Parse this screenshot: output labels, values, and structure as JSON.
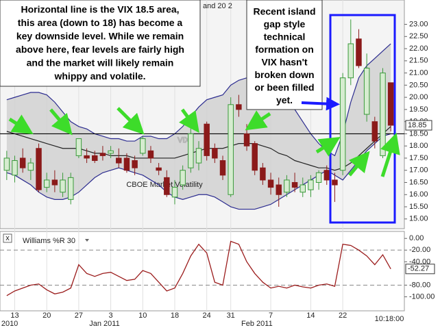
{
  "chart_data": {
    "type": "candlestick",
    "legend_fragment": "and 20 2",
    "watermark": "VIX",
    "watermark_name": "CBOE Market Volatility",
    "up_color": "#3a9a3a",
    "up_fill": "#d6ecd0",
    "down_color": "#8b1a1a",
    "band_color": "#2b2b8f",
    "middle_color": "#222222",
    "band_fill": "#cfcfcf",
    "level": 18.5,
    "last_value": 18.85,
    "categories": [
      null,
      "13",
      null,
      null,
      null,
      "20",
      null,
      null,
      null,
      "27",
      null,
      null,
      null,
      "3",
      null,
      null,
      null,
      "10",
      null,
      null,
      null,
      "18",
      null,
      null,
      null,
      "24",
      null,
      null,
      "31",
      null,
      null,
      null,
      null,
      "7",
      null,
      null,
      null,
      null,
      "14",
      null,
      null,
      null,
      "22",
      null,
      null,
      null,
      null,
      null,
      null
    ],
    "period_labels": [
      {
        "index": 0,
        "label": "2010"
      },
      {
        "index": 11,
        "label": "Jan 2011"
      },
      {
        "index": 30,
        "label": "Feb 2011"
      }
    ],
    "time_label": "10:18:00",
    "open": [
      17.0,
      16.8,
      17.5,
      17.0,
      17.9,
      16.3,
      16.6,
      16.1,
      15.8,
      17.6,
      17.6,
      17.6,
      17.7,
      17.7,
      17.5,
      17.5,
      17.4,
      17.7,
      17.8,
      17.1,
      16.7,
      15.9,
      16.4,
      17.1,
      17.3,
      18.9,
      17.9,
      17.4,
      16.0,
      19.7,
      18.5,
      18.1,
      17.1,
      16.6,
      16.4,
      16.1,
      16.5,
      16.1,
      16.2,
      16.5,
      17.0,
      16.6,
      17.0,
      20.8,
      22.4,
      19.3,
      19.0,
      17.6,
      20.6
    ],
    "high": [
      17.8,
      17.6,
      17.9,
      17.5,
      18.1,
      16.9,
      17.0,
      16.9,
      16.9,
      18.3,
      17.9,
      17.8,
      18.0,
      18.0,
      17.9,
      17.7,
      17.6,
      18.4,
      18.0,
      17.3,
      17.0,
      16.6,
      17.2,
      18.8,
      18.2,
      19.0,
      18.1,
      17.6,
      20.0,
      20.1,
      18.9,
      18.2,
      17.3,
      16.9,
      16.7,
      16.8,
      16.9,
      16.7,
      16.8,
      17.0,
      17.2,
      16.9,
      21.0,
      23.2,
      22.8,
      21.8,
      19.2,
      21.2,
      20.6
    ],
    "low": [
      16.6,
      16.5,
      16.9,
      16.6,
      16.1,
      16.1,
      16.1,
      15.9,
      15.6,
      17.5,
      17.3,
      17.3,
      17.4,
      17.5,
      17.1,
      16.9,
      16.8,
      17.6,
      17.3,
      16.8,
      15.9,
      15.6,
      16.2,
      16.9,
      17.0,
      17.4,
      17.3,
      16.6,
      15.9,
      19.2,
      17.8,
      16.8,
      16.4,
      16.0,
      15.5,
      15.9,
      16.1,
      15.9,
      15.9,
      16.2,
      16.4,
      15.7,
      16.8,
      20.5,
      21.2,
      19.0,
      17.9,
      17.5,
      18.6
    ],
    "close": [
      17.5,
      17.4,
      17.1,
      17.3,
      16.2,
      16.6,
      16.4,
      16.6,
      16.7,
      18.3,
      17.5,
      17.4,
      17.6,
      17.8,
      17.3,
      17.0,
      17.1,
      18.3,
      17.5,
      17.0,
      16.0,
      16.3,
      17.0,
      18.5,
      17.9,
      17.6,
      17.5,
      16.8,
      19.7,
      19.5,
      18.0,
      17.0,
      16.6,
      16.3,
      16.0,
      16.6,
      16.3,
      16.4,
      16.6,
      16.9,
      16.6,
      16.4,
      20.8,
      22.2,
      21.3,
      21.2,
      18.2,
      21.0,
      18.85
    ],
    "upper": [
      19.9,
      20.0,
      20.1,
      20.2,
      20.2,
      20.1,
      19.8,
      19.4,
      19.0,
      18.8,
      18.7,
      18.5,
      18.4,
      18.3,
      18.3,
      18.2,
      18.2,
      18.4,
      18.4,
      18.3,
      18.3,
      18.5,
      18.8,
      19.2,
      19.6,
      19.9,
      20.0,
      20.1,
      20.5,
      20.7,
      20.8,
      20.8,
      20.7,
      20.5,
      20.2,
      19.9,
      19.5,
      19.0,
      18.5,
      18.1,
      17.8,
      17.6,
      18.5,
      19.8,
      20.8,
      21.3,
      21.6,
      21.9,
      22.2
    ],
    "middle": [
      18.6,
      18.5,
      18.4,
      18.3,
      18.2,
      18.1,
      18.0,
      17.9,
      17.9,
      17.9,
      17.8,
      17.7,
      17.7,
      17.6,
      17.6,
      17.6,
      17.5,
      17.5,
      17.5,
      17.5,
      17.5,
      17.5,
      17.6,
      17.7,
      17.8,
      17.9,
      17.9,
      17.9,
      18.0,
      18.1,
      18.1,
      18.1,
      18.0,
      17.9,
      17.7,
      17.6,
      17.4,
      17.3,
      17.2,
      17.1,
      17.1,
      17.0,
      17.1,
      17.3,
      17.6,
      17.9,
      18.2,
      18.5,
      18.8
    ],
    "lower": [
      16.9,
      16.8,
      16.6,
      16.4,
      16.1,
      15.9,
      15.8,
      15.8,
      15.9,
      16.1,
      16.4,
      16.7,
      16.9,
      17.0,
      17.1,
      17.0,
      16.9,
      16.8,
      16.6,
      16.4,
      16.1,
      15.9,
      15.8,
      15.9,
      16.0,
      16.0,
      15.9,
      15.7,
      15.5,
      15.4,
      15.4,
      15.4,
      15.5,
      15.6,
      15.8,
      16.0,
      16.2,
      16.4,
      16.6,
      16.8,
      17.0,
      16.8,
      16.6,
      17.0,
      17.4,
      17.8,
      18.1,
      18.4,
      18.5
    ],
    "ylim": [
      14.6,
      24.0
    ],
    "yticks": [
      {
        "value": 15,
        "label": "15.00"
      },
      {
        "value": 15.5,
        "label": "15.50"
      },
      {
        "value": 16,
        "label": "16.00"
      },
      {
        "value": 16.5,
        "label": "16.50"
      },
      {
        "value": 17,
        "label": "17.00"
      },
      {
        "value": 17.5,
        "label": "17.50"
      },
      {
        "value": 18,
        "label": "18.00"
      },
      {
        "value": 18.5,
        "label": "18.50"
      },
      {
        "value": 19,
        "label": "19.00"
      },
      {
        "value": 19.5,
        "label": "19.50"
      },
      {
        "value": 20,
        "label": "20.00"
      },
      {
        "value": 20.5,
        "label": "20.50"
      },
      {
        "value": 21,
        "label": "21.00"
      },
      {
        "value": 21.5,
        "label": "21.50"
      },
      {
        "value": 22,
        "label": "22.00"
      },
      {
        "value": 22.5,
        "label": "22.50"
      },
      {
        "value": 23,
        "label": "23.00"
      }
    ],
    "indicator": {
      "title": "Williams %R 30",
      "close_box": "x",
      "color": "#9b1c1c",
      "values": [
        -98,
        -90,
        -85,
        -80,
        -78,
        -88,
        -95,
        -92,
        -85,
        -45,
        -60,
        -65,
        -60,
        -58,
        -65,
        -72,
        -70,
        -55,
        -60,
        -75,
        -90,
        -85,
        -60,
        -30,
        -10,
        -25,
        -75,
        -80,
        -5,
        -10,
        -40,
        -60,
        -75,
        -85,
        -82,
        -85,
        -80,
        -83,
        -85,
        -80,
        -78,
        -82,
        -10,
        -12,
        -20,
        -30,
        -45,
        -28,
        -52.27
      ],
      "ylim": [
        -124,
        12
      ],
      "yticks": [
        {
          "value": 0,
          "label": "0.00"
        },
        {
          "value": -20,
          "label": "-20.00"
        },
        {
          "value": -40,
          "label": "-40.00"
        },
        {
          "value": -80,
          "label": "-80.00"
        },
        {
          "value": -100,
          "label": "-100.00"
        }
      ],
      "dashed_levels": [
        -20,
        -80
      ],
      "last_value": -52.27
    },
    "annotations": [
      {
        "lines": [
          "Horizontal line is the VIX 18.5 area,",
          "this area (down to 18) has become a",
          "key downside level.  While we remain",
          "above here, fear levels are fairly high",
          "and the market will likely remain",
          "whippy and volatile."
        ]
      },
      {
        "lines": [
          "Recent island",
          "gap style",
          "technical",
          "formation on",
          "VIX hasn't",
          "broken down",
          "or been filled",
          "yet."
        ]
      }
    ]
  }
}
